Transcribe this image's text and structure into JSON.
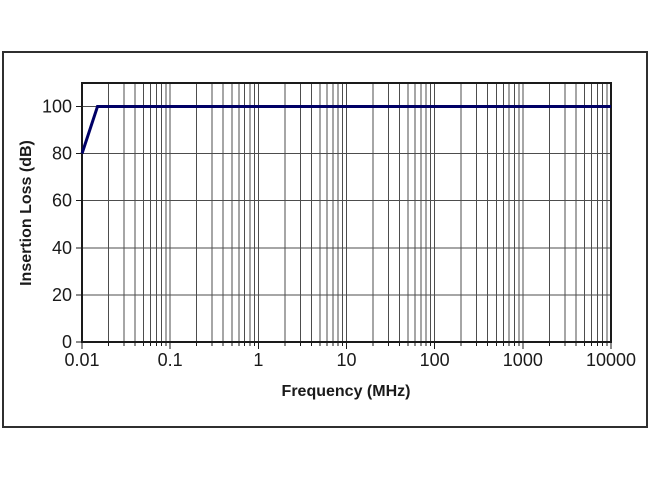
{
  "window": {
    "background": "#ffffff",
    "frame_border_color": "#2f2f2f"
  },
  "chart_data": {
    "type": "line",
    "title": "",
    "xlabel": "Frequency (MHz)",
    "ylabel": "Insertion Loss (dB)",
    "x_scale": "log",
    "y_scale": "linear",
    "xlim": [
      0.01,
      10000
    ],
    "ylim": [
      0,
      110
    ],
    "x_ticks": [
      {
        "value": 0.01,
        "label": "0.01"
      },
      {
        "value": 0.1,
        "label": "0.1"
      },
      {
        "value": 1,
        "label": "1"
      },
      {
        "value": 10,
        "label": "10"
      },
      {
        "value": 100,
        "label": "100"
      },
      {
        "value": 1000,
        "label": "1000"
      },
      {
        "value": 10000,
        "label": "10000"
      }
    ],
    "y_ticks": [
      {
        "value": 0,
        "label": "0"
      },
      {
        "value": 20,
        "label": "20"
      },
      {
        "value": 40,
        "label": "40"
      },
      {
        "value": 60,
        "label": "60"
      },
      {
        "value": 80,
        "label": "80"
      },
      {
        "value": 100,
        "label": "100"
      }
    ],
    "grid": {
      "x_major": true,
      "x_minor_log": true,
      "y_major": true
    },
    "gridline_color": "#4d4d4d",
    "axis_color": "#1a1a1a",
    "legend": "none",
    "series": [
      {
        "name": "insertion-loss",
        "color": "#000066",
        "width": 3,
        "points": [
          [
            0.01,
            80
          ],
          [
            0.015,
            100
          ],
          [
            10000,
            100
          ]
        ]
      }
    ]
  }
}
